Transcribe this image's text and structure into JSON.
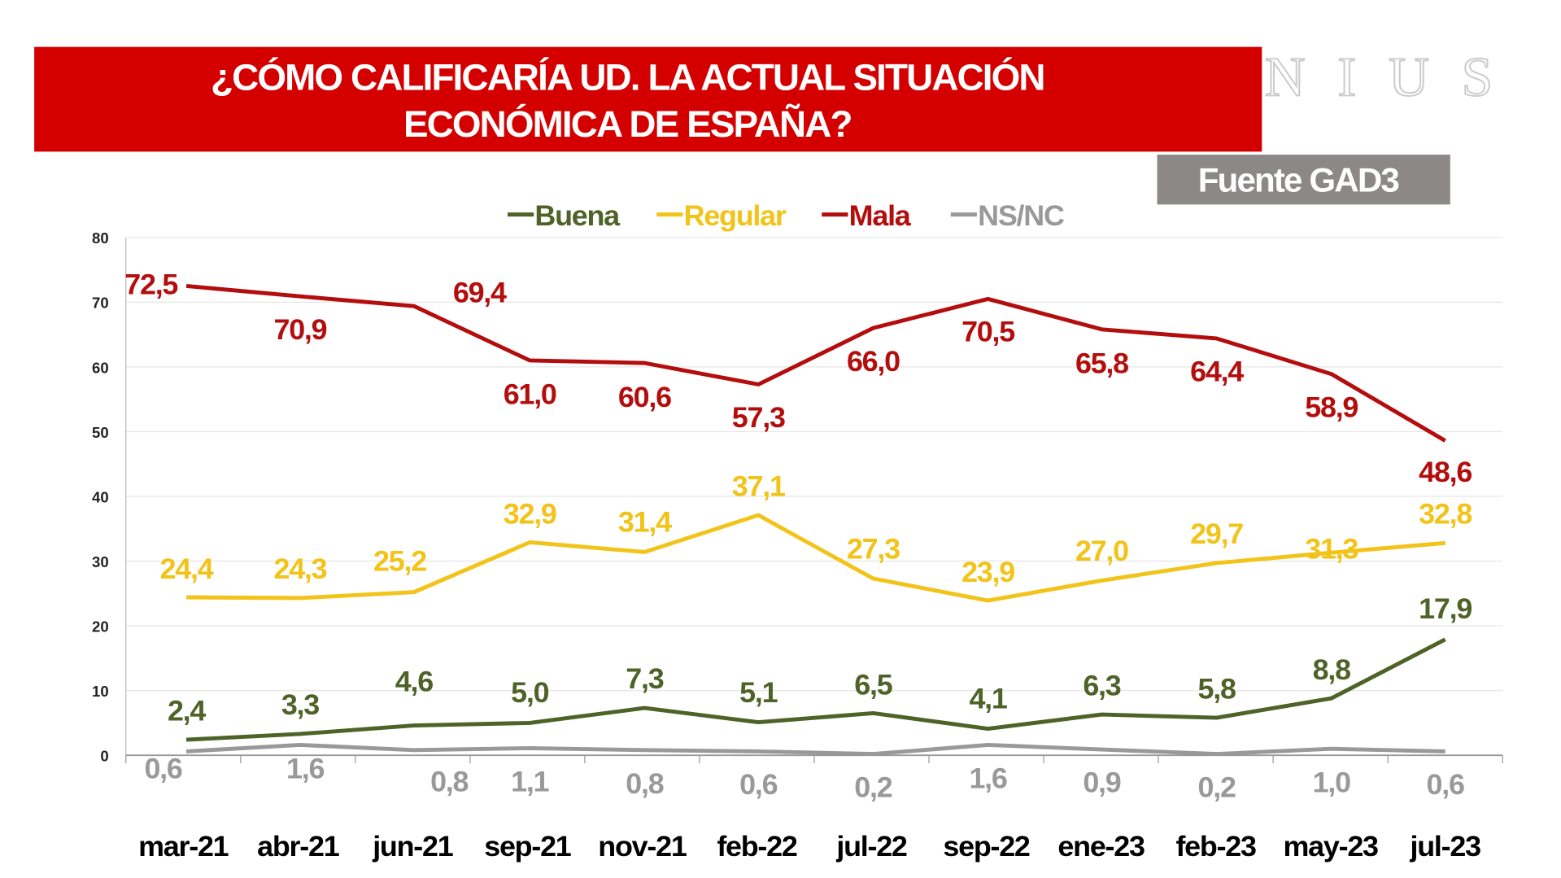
{
  "header": {
    "title_line1": "¿CÓMO CALIFICARÍA UD. LA ACTUAL SITUACIÓN",
    "title_line2": "ECONÓMICA DE ESPAÑA?",
    "logo": "NIUS",
    "source": "Fuente GAD3",
    "banner_color": "#d40000"
  },
  "chart_data": {
    "type": "line",
    "title": "¿CÓMO CALIFICARÍA UD. LA ACTUAL SITUACIÓN ECONÓMICA DE ESPAÑA?",
    "categories": [
      "mar-21",
      "abr-21",
      "jun-21",
      "sep-21",
      "nov-21",
      "feb-22",
      "jul-22",
      "sep-22",
      "ene-23",
      "feb-23",
      "may-23",
      "jul-23"
    ],
    "ylim": [
      0,
      80
    ],
    "yticks": [
      "0",
      "10",
      "20",
      "30",
      "40",
      "50",
      "60",
      "70",
      "80"
    ],
    "grid": true,
    "legend": "top",
    "series": [
      {
        "name": "Buena",
        "color": "#4f6228",
        "values": [
          2.4,
          3.3,
          4.6,
          5.0,
          7.3,
          5.1,
          6.5,
          4.1,
          6.3,
          5.8,
          8.8,
          17.9
        ],
        "labels": [
          "2,4",
          "3,3",
          "4,6",
          "5,0",
          "7,3",
          "5,1",
          "6,5",
          "4,1",
          "6,3",
          "5,8",
          "8,8",
          "17,9"
        ]
      },
      {
        "name": "Regular",
        "color": "#f2c318",
        "values": [
          24.4,
          24.3,
          25.2,
          32.9,
          31.4,
          37.1,
          27.3,
          23.9,
          27.0,
          29.7,
          31.3,
          32.8
        ],
        "labels": [
          "24,4",
          "24,3",
          "25,2",
          "32,9",
          "31,4",
          "37,1",
          "27,3",
          "23,9",
          "27,0",
          "29,7",
          "31,3",
          "32,8"
        ]
      },
      {
        "name": "Mala",
        "color": "#b40d0d",
        "values": [
          72.5,
          70.9,
          69.4,
          61.0,
          60.6,
          57.3,
          66.0,
          70.5,
          65.8,
          64.4,
          58.9,
          48.6
        ],
        "labels": [
          "72,5",
          "70,9",
          "69,4",
          "61,0",
          "60,6",
          "57,3",
          "66,0",
          "70,5",
          "65,8",
          "64,4",
          "58,9",
          "48,6"
        ]
      },
      {
        "name": "NS/NC",
        "color": "#999999",
        "values": [
          0.6,
          1.6,
          0.8,
          1.1,
          0.8,
          0.6,
          0.2,
          1.6,
          0.9,
          0.2,
          1.0,
          0.6
        ],
        "labels": [
          "0,6",
          "1,6",
          "0,8",
          "1,1",
          "0,8",
          "0,6",
          "0,2",
          "1,6",
          "0,9",
          "0,2",
          "1,0",
          "0,6"
        ]
      }
    ]
  }
}
